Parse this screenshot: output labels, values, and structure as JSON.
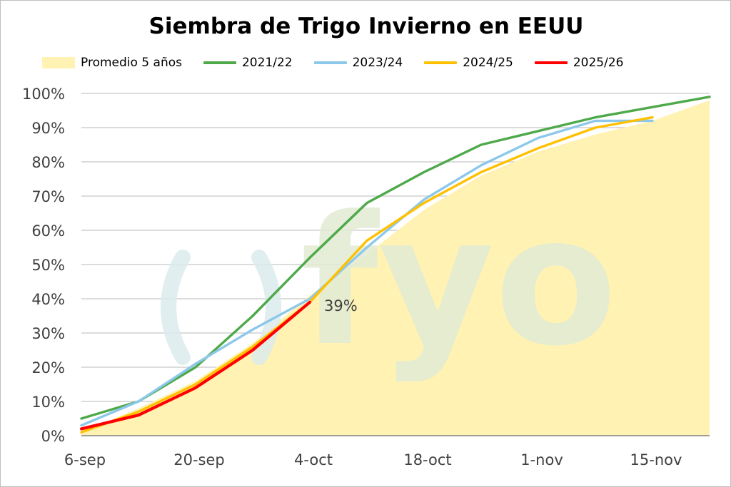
{
  "chart_data": {
    "type": "line",
    "title": "Siembra de Trigo Invierno en EEUU",
    "xlabel": "",
    "ylabel": "",
    "x_tick_labels": [
      "6-sep",
      "20-sep",
      "4-oct",
      "18-oct",
      "1-nov",
      "15-nov"
    ],
    "x_weeks": [
      "6-sep",
      "13-sep",
      "20-sep",
      "27-sep",
      "4-oct",
      "11-oct",
      "18-oct",
      "25-oct",
      "1-nov",
      "8-nov",
      "15-nov",
      "22-nov"
    ],
    "y_ticks": [
      0,
      10,
      20,
      30,
      40,
      50,
      60,
      70,
      80,
      90,
      100
    ],
    "y_tick_labels": [
      "0%",
      "10%",
      "20%",
      "30%",
      "40%",
      "50%",
      "60%",
      "70%",
      "80%",
      "90%",
      "100%"
    ],
    "ylim": [
      0,
      100
    ],
    "grid": "horizontal",
    "legend_position": "top",
    "series": [
      {
        "name": "Promedio 5 años",
        "style": "area",
        "color": "#fff2b3",
        "values": [
          1,
          8,
          16,
          27,
          41,
          53,
          66,
          76,
          83,
          88,
          92,
          98
        ]
      },
      {
        "name": "2021/22",
        "style": "line",
        "color": "#4ea94a",
        "values": [
          5,
          10,
          20,
          35,
          52,
          68,
          77,
          85,
          89,
          93,
          96,
          99
        ]
      },
      {
        "name": "2023/24",
        "style": "line",
        "color": "#8dc8ea",
        "values": [
          3,
          10,
          21,
          31,
          40,
          55,
          69,
          79,
          87,
          92,
          92,
          null
        ]
      },
      {
        "name": "2024/25",
        "style": "line",
        "color": "#ffc000",
        "values": [
          1,
          7,
          15,
          26,
          39,
          57,
          68,
          77,
          84,
          90,
          93,
          null
        ]
      },
      {
        "name": "2025/26",
        "style": "line",
        "color": "#ff0000",
        "values": [
          2,
          6,
          14,
          25,
          39,
          null,
          null,
          null,
          null,
          null,
          null,
          null
        ]
      }
    ],
    "annotations": [
      {
        "series": "2025/26",
        "week": "4-oct",
        "text": "39%"
      }
    ]
  },
  "watermark": {
    "text": "fyo",
    "colors": [
      "#dcebec",
      "#e2ebd3"
    ]
  },
  "axis_color": "#808080",
  "grid_color": "#c8c8c8"
}
